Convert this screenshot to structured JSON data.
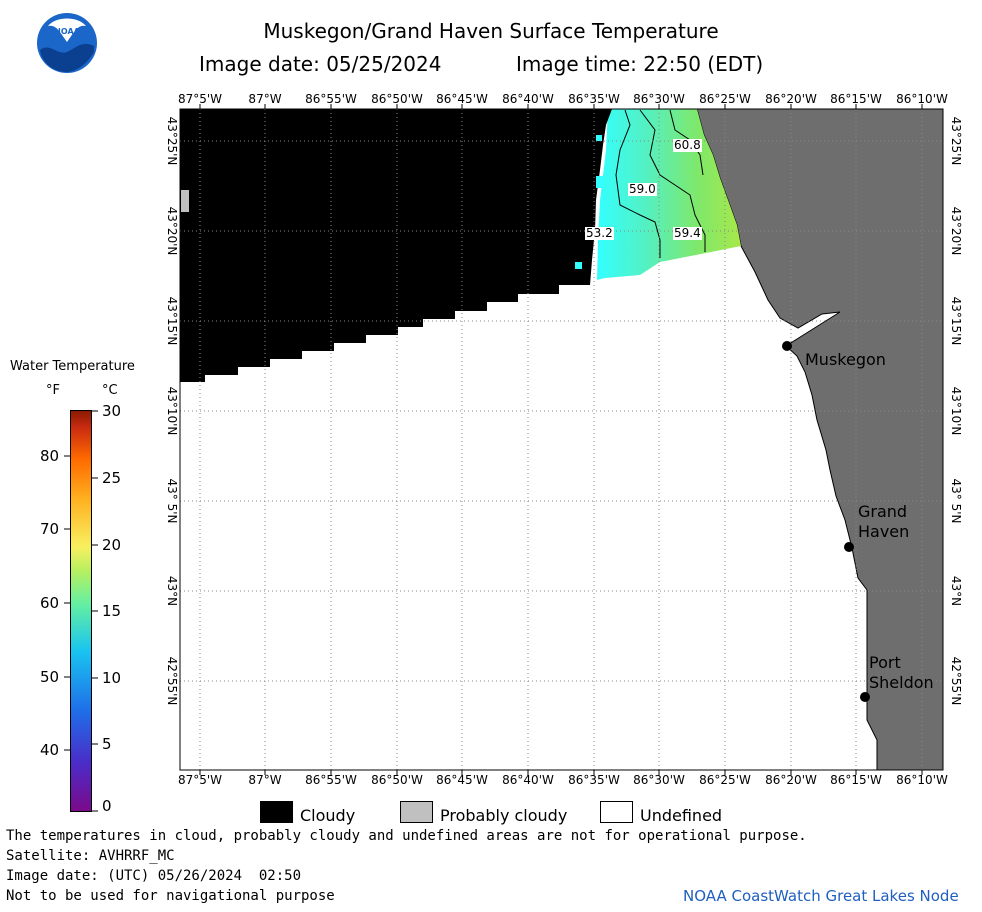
{
  "header": {
    "title": "Muskegon/Grand Haven Surface Temperature",
    "image_date": "Image date: 05/25/2024",
    "image_time": "Image time: 22:50 (EDT)"
  },
  "logo": {
    "text": "NOAA",
    "icon": "noaa-logo"
  },
  "map": {
    "lon_labels": [
      "87°5'W",
      "87°W",
      "86°55'W",
      "86°50'W",
      "86°45'W",
      "86°40'W",
      "86°35'W",
      "86°30'W",
      "86°25'W",
      "86°20'W",
      "86°15'W",
      "86°10'W"
    ],
    "lat_labels": [
      "43°25'N",
      "43°20'N",
      "43°15'N",
      "43°10'N",
      "43° 5'N",
      "43°N",
      "42°55'N"
    ],
    "isotherm_labels": [
      "60.8",
      "59.0",
      "53.2",
      "59.4"
    ],
    "places": [
      {
        "name": "Muskegon",
        "lines": [
          "Muskegon"
        ]
      },
      {
        "name": "Grand Haven",
        "lines": [
          "Grand",
          "Haven"
        ]
      },
      {
        "name": "Port Sheldon",
        "lines": [
          "Port",
          "Sheldon"
        ]
      }
    ],
    "colors": {
      "cloudy": "#000000",
      "probably_cloudy": "#c0c0c0",
      "land": "#6e6e6e",
      "undefined": "#ffffff"
    }
  },
  "legend": {
    "title": "Water Temperature",
    "unit_f": "°F",
    "unit_c": "°C",
    "fahrenheit_ticks": [
      "80",
      "70",
      "60",
      "50",
      "40"
    ],
    "celsius_ticks": [
      "30",
      "25",
      "20",
      "15",
      "10",
      "5",
      "0"
    ],
    "cloud_legend": [
      {
        "label": "Cloudy",
        "color": "#000000"
      },
      {
        "label": "Probably cloudy",
        "color": "#c0c0c0"
      },
      {
        "label": "Undefined",
        "color": "#ffffff"
      }
    ]
  },
  "footer": {
    "disclaimer": "The temperatures in cloud, probably cloudy and undefined areas are not for operational purpose.",
    "satellite": "Satellite: AVHRRF_MC",
    "utc_date": "Image date: (UTC) 05/26/2024  02:50",
    "nav_warning": "Not to be used for navigational purpose",
    "credit": "NOAA CoastWatch Great Lakes Node"
  }
}
